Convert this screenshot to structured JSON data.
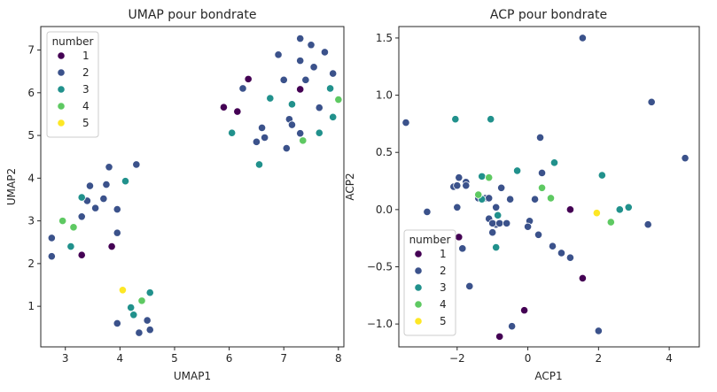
{
  "palette": {
    "1": "#440154",
    "2": "#3b528b",
    "3": "#21918c",
    "4": "#5ec962",
    "5": "#fde725"
  },
  "chart_data": [
    {
      "type": "scatter",
      "title": "UMAP pour bondrate",
      "xlabel": "UMAP1",
      "ylabel": "UMAP2",
      "xlim": [
        2.55,
        8.1
      ],
      "ylim": [
        0.05,
        7.55
      ],
      "xticks": [
        3,
        4,
        5,
        6,
        7,
        8
      ],
      "yticks": [
        1,
        2,
        3,
        4,
        5,
        6,
        7
      ],
      "legend": {
        "title": "number",
        "placement": "top-left",
        "entries": [
          "1",
          "2",
          "3",
          "4",
          "5"
        ]
      },
      "series": [
        {
          "name": "1",
          "points": [
            [
              6.35,
              6.32
            ],
            [
              5.9,
              5.66
            ],
            [
              6.15,
              5.56
            ],
            [
              7.3,
              6.08
            ],
            [
              3.3,
              2.2
            ],
            [
              3.85,
              2.4
            ]
          ]
        },
        {
          "name": "2",
          "points": [
            [
              7.3,
              7.27
            ],
            [
              7.5,
              7.12
            ],
            [
              6.9,
              6.89
            ],
            [
              7.3,
              6.75
            ],
            [
              7.75,
              6.95
            ],
            [
              7.55,
              6.6
            ],
            [
              7.9,
              6.45
            ],
            [
              6.25,
              6.1
            ],
            [
              7.0,
              6.3
            ],
            [
              7.4,
              6.3
            ],
            [
              7.65,
              5.65
            ],
            [
              7.1,
              5.38
            ],
            [
              7.15,
              5.25
            ],
            [
              6.6,
              5.18
            ],
            [
              6.65,
              4.95
            ],
            [
              6.5,
              4.85
            ],
            [
              7.3,
              5.05
            ],
            [
              7.05,
              4.7
            ],
            [
              4.3,
              4.32
            ],
            [
              3.8,
              4.26
            ],
            [
              3.45,
              3.82
            ],
            [
              3.75,
              3.85
            ],
            [
              3.7,
              3.52
            ],
            [
              3.4,
              3.47
            ],
            [
              3.55,
              3.3
            ],
            [
              3.95,
              3.27
            ],
            [
              3.3,
              3.1
            ],
            [
              2.75,
              2.6
            ],
            [
              3.95,
              2.72
            ],
            [
              2.75,
              2.17
            ],
            [
              4.5,
              0.67
            ],
            [
              4.55,
              0.45
            ],
            [
              3.95,
              0.6
            ],
            [
              4.35,
              0.38
            ]
          ]
        },
        {
          "name": "3",
          "points": [
            [
              6.75,
              5.87
            ],
            [
              7.85,
              6.1
            ],
            [
              7.15,
              5.73
            ],
            [
              7.9,
              5.43
            ],
            [
              6.05,
              5.06
            ],
            [
              7.65,
              5.06
            ],
            [
              6.55,
              4.32
            ],
            [
              4.1,
              3.93
            ],
            [
              3.3,
              3.55
            ],
            [
              3.1,
              2.4
            ],
            [
              4.55,
              1.32
            ],
            [
              4.2,
              0.97
            ],
            [
              4.25,
              0.8
            ]
          ]
        },
        {
          "name": "4",
          "points": [
            [
              8.0,
              5.84
            ],
            [
              7.35,
              4.88
            ],
            [
              2.95,
              3.0
            ],
            [
              3.15,
              2.85
            ],
            [
              4.4,
              1.13
            ]
          ]
        },
        {
          "name": "5",
          "points": [
            [
              4.05,
              1.38
            ]
          ]
        }
      ]
    },
    {
      "type": "scatter",
      "title": "ACP pour bondrate",
      "xlabel": "ACP1",
      "ylabel": "ACP2",
      "xlim": [
        -3.65,
        4.85
      ],
      "ylim": [
        -1.2,
        1.6
      ],
      "xticks": [
        -2,
        0,
        2,
        4
      ],
      "yticks": [
        -1.0,
        -0.5,
        0.0,
        0.5,
        1.0,
        1.5
      ],
      "ytick_labels": [
        "−1.0",
        "−0.5",
        "0.0",
        "0.5",
        "1.0",
        "1.5"
      ],
      "xtick_labels": [
        "−2",
        "0",
        "2",
        "4"
      ],
      "legend": {
        "title": "number",
        "placement": "bottom-left",
        "entries": [
          "1",
          "2",
          "3",
          "4",
          "5"
        ]
      },
      "series": [
        {
          "name": "1",
          "points": [
            [
              1.2,
              0.0
            ],
            [
              -1.95,
              -0.24
            ],
            [
              1.55,
              -0.6
            ],
            [
              -0.1,
              -0.88
            ],
            [
              -0.8,
              -1.11
            ]
          ]
        },
        {
          "name": "2",
          "points": [
            [
              1.55,
              1.5
            ],
            [
              3.5,
              0.94
            ],
            [
              -3.45,
              0.76
            ],
            [
              0.35,
              0.63
            ],
            [
              4.45,
              0.45
            ],
            [
              0.4,
              0.32
            ],
            [
              -1.95,
              0.28
            ],
            [
              -2.1,
              0.2
            ],
            [
              -2.0,
              0.21
            ],
            [
              -1.75,
              0.24
            ],
            [
              -1.75,
              0.21
            ],
            [
              -0.75,
              0.19
            ],
            [
              -2.85,
              -0.02
            ],
            [
              -2.0,
              0.02
            ],
            [
              -1.2,
              0.1
            ],
            [
              -1.1,
              0.1
            ],
            [
              -0.9,
              0.02
            ],
            [
              -1.4,
              0.1
            ],
            [
              -0.5,
              0.09
            ],
            [
              0.2,
              0.09
            ],
            [
              -1.1,
              -0.08
            ],
            [
              -0.9,
              -0.13
            ],
            [
              -1.0,
              -0.12
            ],
            [
              -0.8,
              -0.12
            ],
            [
              -0.6,
              -0.12
            ],
            [
              0.05,
              -0.1
            ],
            [
              0.3,
              -0.22
            ],
            [
              -1.0,
              -0.2
            ],
            [
              0.0,
              -0.15
            ],
            [
              0.7,
              -0.32
            ],
            [
              3.4,
              -0.13
            ],
            [
              -1.85,
              -0.34
            ],
            [
              0.95,
              -0.38
            ],
            [
              1.2,
              -0.42
            ],
            [
              -1.65,
              -0.67
            ],
            [
              -0.45,
              -1.02
            ],
            [
              2.0,
              -1.06
            ]
          ]
        },
        {
          "name": "3",
          "points": [
            [
              -2.05,
              0.79
            ],
            [
              -1.05,
              0.79
            ],
            [
              0.75,
              0.41
            ],
            [
              -0.3,
              0.34
            ],
            [
              -1.3,
              0.29
            ],
            [
              2.1,
              0.3
            ],
            [
              -1.3,
              0.09
            ],
            [
              -0.85,
              -0.05
            ],
            [
              2.6,
              0.0
            ],
            [
              2.85,
              0.02
            ],
            [
              -0.9,
              -0.33
            ]
          ]
        },
        {
          "name": "4",
          "points": [
            [
              -1.1,
              0.28
            ],
            [
              0.4,
              0.19
            ],
            [
              -1.4,
              0.13
            ],
            [
              0.65,
              0.1
            ],
            [
              2.35,
              -0.11
            ]
          ]
        },
        {
          "name": "5",
          "points": [
            [
              1.95,
              -0.03
            ]
          ]
        }
      ]
    }
  ]
}
